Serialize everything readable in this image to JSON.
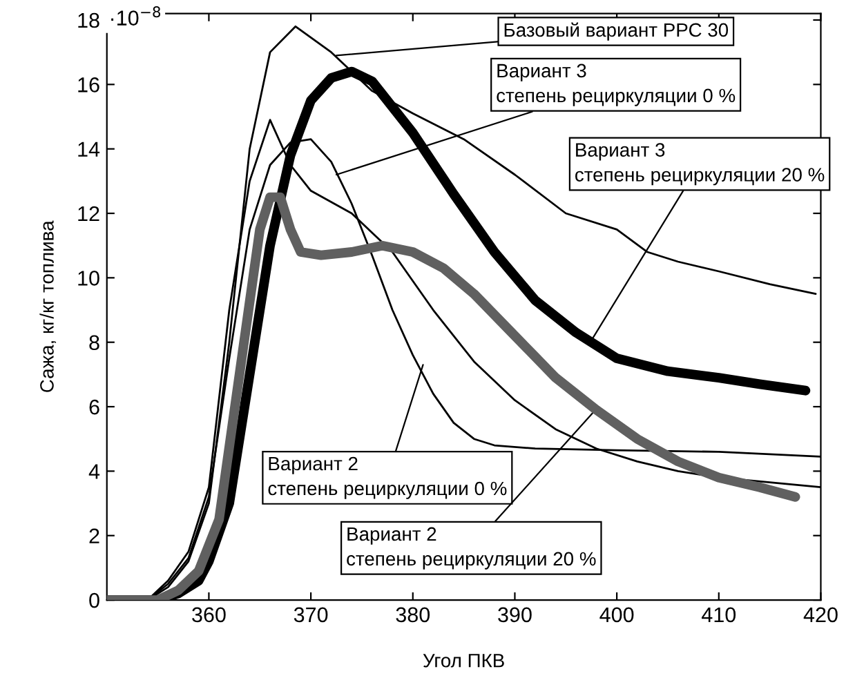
{
  "chart_data": {
    "type": "line",
    "xlabel": "Угол ПКВ",
    "ylabel": "Сажа, кг/кг топлива",
    "xlim": [
      350,
      420
    ],
    "xticks": [
      360,
      370,
      380,
      390,
      400,
      410,
      420
    ],
    "ylim": [
      0,
      18.2
    ],
    "yticks": [
      0,
      2,
      4,
      6,
      8,
      10,
      12,
      14,
      16,
      18
    ],
    "grid": false,
    "legend": false,
    "marker": "none",
    "line_style": "solid",
    "series": [
      {
        "color": "#000000",
        "x": [
          350,
          354,
          356,
          358,
          360,
          362,
          364,
          366,
          368.5,
          372,
          376,
          380,
          385,
          390,
          395,
          400,
          403,
          406,
          410,
          415,
          419.5
        ],
        "values": [
          0,
          0,
          0.4,
          1.2,
          3,
          8,
          14,
          17,
          17.8,
          17,
          15.8,
          15.1,
          14.3,
          13.2,
          12.0,
          11.5,
          10.8,
          10.5,
          10.2,
          9.8,
          9.5
        ]
      },
      {
        "color": "#000000",
        "x": [
          350,
          354,
          356,
          358,
          360,
          362,
          364,
          366,
          368,
          370,
          372,
          374,
          376,
          378,
          380,
          382,
          384,
          386,
          388,
          392,
          400,
          410,
          420
        ],
        "values": [
          0,
          0,
          0.5,
          1.3,
          3.2,
          7.5,
          11.5,
          13.5,
          14.2,
          14.3,
          13.6,
          12.3,
          10.7,
          9,
          7.6,
          6.4,
          5.5,
          5,
          4.8,
          4.7,
          4.65,
          4.6,
          4.45
        ]
      },
      {
        "color": "#000000",
        "x": [
          350,
          354,
          356,
          358,
          360,
          362,
          364,
          366,
          368,
          370,
          374,
          378,
          382,
          386,
          390,
          394,
          398,
          402,
          406,
          410,
          415,
          420
        ],
        "values": [
          0,
          0,
          0.6,
          1.5,
          3.5,
          9,
          13,
          14.9,
          13.5,
          12.7,
          12,
          10.8,
          9,
          7.4,
          6.2,
          5.3,
          4.7,
          4.3,
          4,
          3.8,
          3.65,
          3.5
        ]
      },
      {
        "color": "#000000",
        "x": [
          350,
          355,
          357,
          359,
          360,
          362,
          364,
          366,
          368,
          370,
          372,
          374,
          376,
          380,
          384,
          388,
          392,
          396,
          400,
          405,
          410,
          414,
          418.5
        ],
        "values": [
          0,
          0,
          0.2,
          0.6,
          1.2,
          3,
          7,
          11,
          13.8,
          15.5,
          16.2,
          16.4,
          16.1,
          14.5,
          12.6,
          10.8,
          9.3,
          8.3,
          7.5,
          7.1,
          6.9,
          6.7,
          6.5
        ]
      },
      {
        "color": "#606060",
        "x": [
          350,
          355,
          357,
          359,
          361,
          363,
          365,
          366,
          367,
          368,
          369,
          371,
          374,
          377,
          380,
          383,
          386,
          390,
          394,
          398,
          402,
          406,
          410,
          414,
          417.5
        ],
        "values": [
          0,
          0,
          0.3,
          0.9,
          2.5,
          7,
          11.5,
          12.5,
          12.5,
          11.5,
          10.8,
          10.7,
          10.8,
          11,
          10.8,
          10.3,
          9.5,
          8.2,
          6.9,
          5.9,
          5,
          4.3,
          3.8,
          3.5,
          3.2
        ]
      }
    ],
    "annotations": [
      "·10$^{−8}$",
      {
        "text": "Базовый вариант РРС 30",
        "x": 372.5,
        "y": 16.9
      },
      {
        "text": "Вариант 3\nстепень рециркуляции 0 %",
        "x": 372.5,
        "y": 13.2
      },
      {
        "text": "Вариант 3\nстепень рециркуляции 20 %",
        "x": 397.4,
        "y": 8.0
      },
      {
        "text": "Вариант 2\nстепень рециркуляции 0 %",
        "x": 381,
        "y": 7.3
      },
      {
        "text": "Вариант 2\nстепень рециркуляции 20 %",
        "x": 397.9,
        "y": 5.9
      }
    ]
  }
}
